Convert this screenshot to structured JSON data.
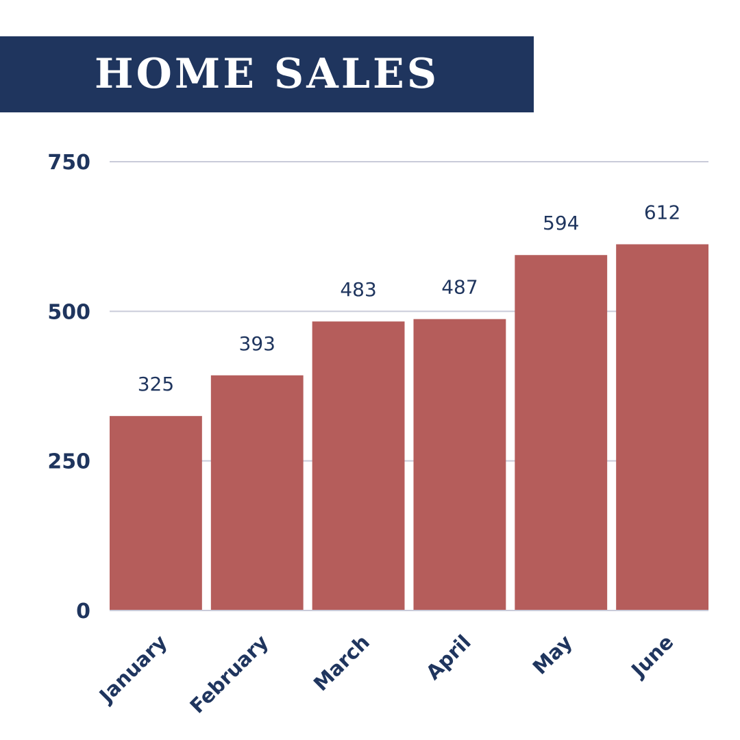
{
  "chart_data": {
    "type": "bar",
    "title": "HOME SALES",
    "categories": [
      "January",
      "February",
      "March",
      "April",
      "May",
      "June"
    ],
    "values": [
      325,
      393,
      483,
      487,
      594,
      612
    ],
    "ylim": [
      0,
      750
    ],
    "yticks": [
      0,
      250,
      500,
      750
    ],
    "xlabel": "",
    "ylabel": "",
    "grid": true,
    "legend": "none",
    "data_labels": true
  },
  "colors": {
    "bar": "#b55d5b",
    "title_background": "#1f355e",
    "text": "#1f355e",
    "grid": "#c9cbd9"
  }
}
